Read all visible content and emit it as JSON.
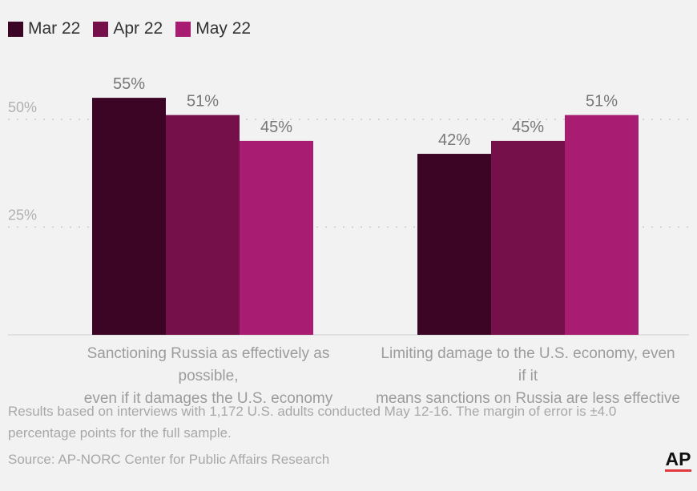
{
  "legend": [
    {
      "label": "Mar 22",
      "color": "#3c0525"
    },
    {
      "label": "Apr 22",
      "color": "#75104b"
    },
    {
      "label": "May 22",
      "color": "#a81d72"
    }
  ],
  "chart_data": {
    "type": "bar",
    "categories": [
      "Sanctioning Russia as effectively as possible, even if it damages the U.S. economy",
      "Limiting damage to the U.S. economy, even if it means sanctions on Russia are less effective"
    ],
    "category_lines": [
      [
        "Sanctioning Russia as effectively as possible,",
        "even if it damages the U.S. economy"
      ],
      [
        "Limiting damage to the U.S. economy, even if it",
        "means sanctions on Russia are less effective"
      ]
    ],
    "series": [
      {
        "name": "Mar 22",
        "values": [
          55,
          42
        ],
        "color": "#3c0525"
      },
      {
        "name": "Apr 22",
        "values": [
          51,
          45
        ],
        "color": "#75104b"
      },
      {
        "name": "May 22",
        "values": [
          45,
          51
        ],
        "color": "#a81d72"
      }
    ],
    "value_suffix": "%",
    "ytick_labels": [
      "25%",
      "50%"
    ],
    "yticks": [
      25,
      50
    ],
    "ylim": [
      0,
      55
    ],
    "grid": true
  },
  "note": "Results based on interviews with 1,172 U.S. adults conducted May 12-16. The margin of error is ±4.0 percentage points for the full sample.",
  "source": "Source: AP-NORC Center for Public Affairs Research",
  "logo_text": "AP"
}
